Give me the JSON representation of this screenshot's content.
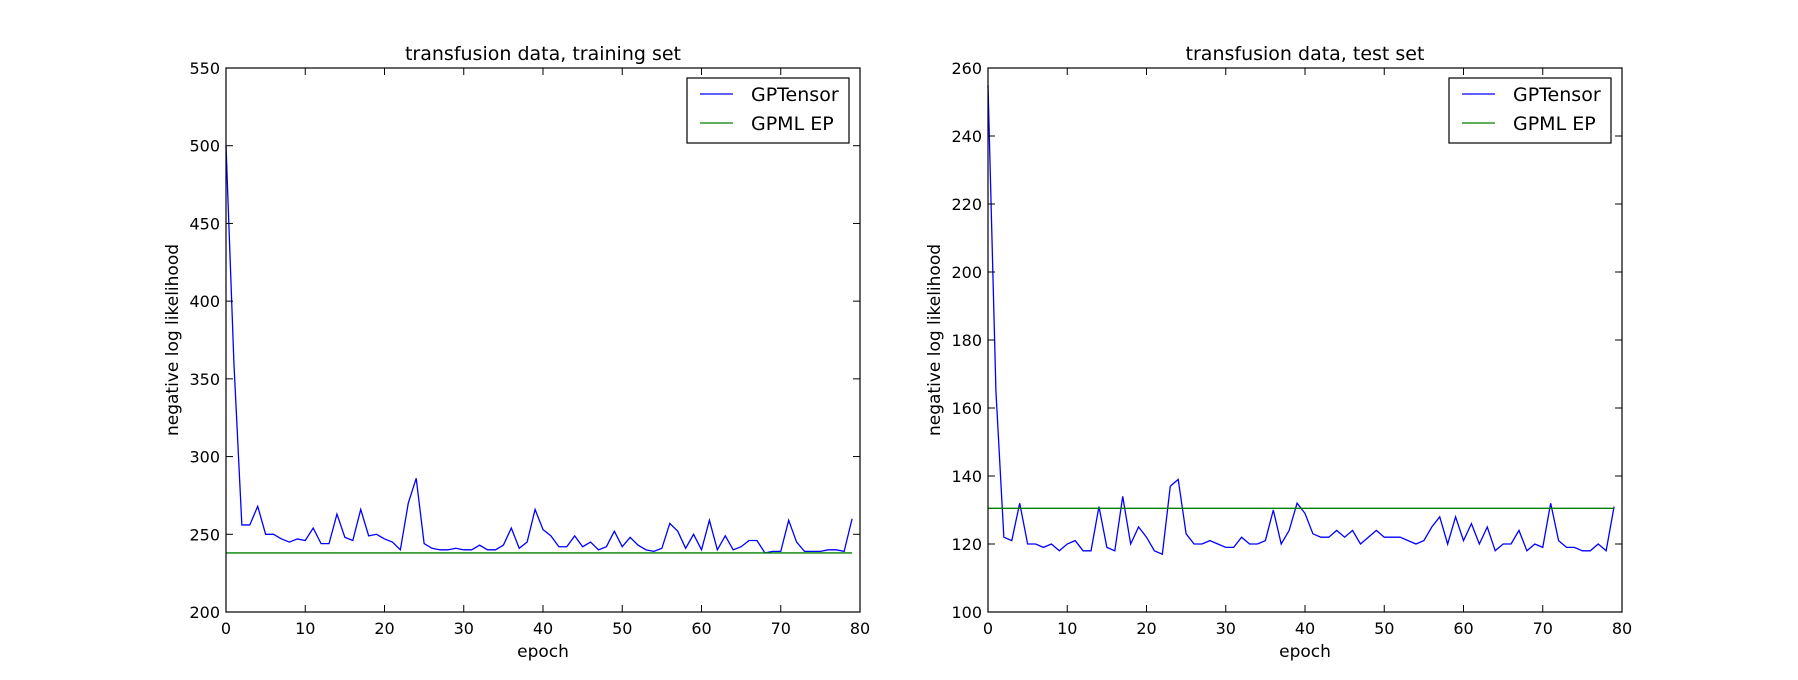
{
  "chart_data": [
    {
      "type": "line",
      "title": "transfusion data, training set",
      "xlabel": "epoch",
      "ylabel": "negative log likelihood",
      "xlim": [
        0,
        80
      ],
      "ylim": [
        200,
        550
      ],
      "xticks": [
        0,
        10,
        20,
        30,
        40,
        50,
        60,
        70,
        80
      ],
      "yticks": [
        200,
        250,
        300,
        350,
        400,
        450,
        500,
        550
      ],
      "grid": false,
      "legend_position": "top-right",
      "series": [
        {
          "name": "GPTensor",
          "color": "#0000ff",
          "x": [
            0,
            1,
            2,
            3,
            4,
            5,
            6,
            7,
            8,
            9,
            10,
            11,
            12,
            13,
            14,
            15,
            16,
            17,
            18,
            19,
            20,
            21,
            22,
            23,
            24,
            25,
            26,
            27,
            28,
            29,
            30,
            31,
            32,
            33,
            34,
            35,
            36,
            37,
            38,
            39,
            40,
            41,
            42,
            43,
            44,
            45,
            46,
            47,
            48,
            49,
            50,
            51,
            52,
            53,
            54,
            55,
            56,
            57,
            58,
            59,
            60,
            61,
            62,
            63,
            64,
            65,
            66,
            67,
            68,
            69,
            70,
            71,
            72,
            73,
            74,
            75,
            76,
            77,
            78,
            79
          ],
          "values": [
            500,
            360,
            256,
            256,
            268,
            250,
            250,
            247,
            245,
            247,
            246,
            254,
            244,
            244,
            263,
            248,
            246,
            266,
            249,
            250,
            247,
            245,
            240,
            270,
            286,
            244,
            241,
            240,
            240,
            241,
            240,
            240,
            243,
            240,
            240,
            243,
            254,
            241,
            245,
            266,
            253,
            249,
            242,
            242,
            249,
            242,
            245,
            240,
            242,
            252,
            242,
            248,
            243,
            240,
            239,
            241,
            257,
            252,
            241,
            250,
            240,
            259,
            240,
            249,
            240,
            242,
            246,
            246,
            238,
            239,
            239,
            259,
            245,
            239,
            239,
            239,
            240,
            240,
            239,
            260
          ]
        },
        {
          "name": "GPML EP",
          "color": "#008000",
          "x": [
            0,
            79
          ],
          "values": [
            238,
            238
          ]
        }
      ]
    },
    {
      "type": "line",
      "title": "transfusion data, test set",
      "xlabel": "epoch",
      "ylabel": "negative log likelihood",
      "xlim": [
        0,
        80
      ],
      "ylim": [
        100,
        260
      ],
      "xticks": [
        0,
        10,
        20,
        30,
        40,
        50,
        60,
        70,
        80
      ],
      "yticks": [
        100,
        120,
        140,
        160,
        180,
        200,
        220,
        240,
        260
      ],
      "grid": false,
      "legend_position": "top-right",
      "series": [
        {
          "name": "GPTensor",
          "color": "#0000ff",
          "x": [
            0,
            1,
            2,
            3,
            4,
            5,
            6,
            7,
            8,
            9,
            10,
            11,
            12,
            13,
            14,
            15,
            16,
            17,
            18,
            19,
            20,
            21,
            22,
            23,
            24,
            25,
            26,
            27,
            28,
            29,
            30,
            31,
            32,
            33,
            34,
            35,
            36,
            37,
            38,
            39,
            40,
            41,
            42,
            43,
            44,
            45,
            46,
            47,
            48,
            49,
            50,
            51,
            52,
            53,
            54,
            55,
            56,
            57,
            58,
            59,
            60,
            61,
            62,
            63,
            64,
            65,
            66,
            67,
            68,
            69,
            70,
            71,
            72,
            73,
            74,
            75,
            76,
            77,
            78,
            79
          ],
          "values": [
            255,
            165,
            122,
            121,
            132,
            120,
            120,
            119,
            120,
            118,
            120,
            121,
            118,
            118,
            131,
            119,
            118,
            134,
            120,
            125,
            122,
            118,
            117,
            137,
            139,
            123,
            120,
            120,
            121,
            120,
            119,
            119,
            122,
            120,
            120,
            121,
            130,
            120,
            124,
            132,
            129,
            123,
            122,
            122,
            124,
            122,
            124,
            120,
            122,
            124,
            122,
            122,
            122,
            121,
            120,
            121,
            125,
            128,
            120,
            128,
            121,
            126,
            120,
            125,
            118,
            120,
            120,
            124,
            118,
            120,
            119,
            132,
            121,
            119,
            119,
            118,
            118,
            120,
            118,
            131
          ]
        },
        {
          "name": "GPML EP",
          "color": "#008000",
          "x": [
            0,
            79
          ],
          "values": [
            130.5,
            130.5
          ]
        }
      ]
    }
  ]
}
